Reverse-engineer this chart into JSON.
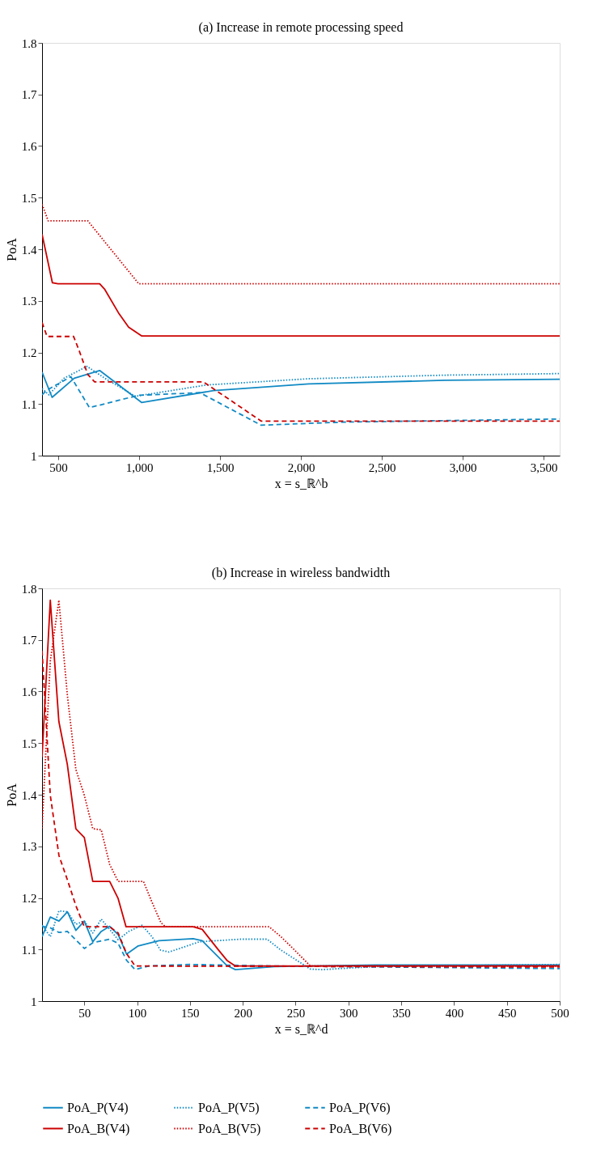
{
  "chart_data": [
    {
      "type": "line",
      "title": "(a) Increase in remote processing speed",
      "xlabel": "x = s_ℝ^b",
      "ylabel": "PoA",
      "xlim": [
        400,
        3600
      ],
      "xticks": [
        500,
        {
          "value": 1000,
          "label": "1,000"
        },
        {
          "value": 1500,
          "label": "1,500"
        },
        {
          "value": 2000,
          "label": "2,000"
        },
        {
          "value": 2500,
          "label": "2,500"
        },
        {
          "value": 3000,
          "label": "3,000"
        },
        {
          "value": 3500,
          "label": "3,500"
        }
      ],
      "ylim": [
        1,
        1.8
      ],
      "yticks": [
        1,
        1.1,
        1.2,
        1.3,
        1.4,
        1.5,
        1.6,
        1.7,
        1.8
      ],
      "grid": false,
      "legend": "bottom",
      "marker": "none",
      "series": [
        {
          "name": "PoA_P(V4)",
          "color": "#118ac4",
          "line_style": "solid",
          "x": [
            400,
            462,
            599,
            756,
            1015,
            1460,
            2048,
            2888,
            3600
          ],
          "values": [
            1.162,
            1.113,
            1.15,
            1.165,
            1.103,
            1.126,
            1.139,
            1.146,
            1.148
          ]
        },
        {
          "name": "PoA_P(V5)",
          "color": "#118ac4",
          "line_style": "dotted",
          "x": [
            400,
            442,
            536,
            678,
            788,
            977,
            1418,
            2048,
            2888,
            3600
          ],
          "values": [
            1.13,
            1.118,
            1.15,
            1.173,
            1.15,
            1.115,
            1.137,
            1.149,
            1.156,
            1.159
          ]
        },
        {
          "name": "PoA_P(V6)",
          "color": "#118ac4",
          "line_style": "dashed",
          "x": [
            400,
            431,
            578,
            693,
            998,
            1376,
            1754,
            2258,
            3600
          ],
          "values": [
            1.118,
            1.127,
            1.153,
            1.093,
            1.117,
            1.122,
            1.059,
            1.065,
            1.071
          ]
        },
        {
          "name": "PoA_B(V4)",
          "color": "#cc0000",
          "line_style": "solid",
          "x": [
            400,
            464,
            498,
            756,
            788,
            872,
            935,
            1015,
            3600
          ],
          "values": [
            1.429,
            1.335,
            1.333,
            1.333,
            1.322,
            1.277,
            1.249,
            1.232,
            1.232
          ]
        },
        {
          "name": "PoA_B(V5)",
          "color": "#cc0000",
          "line_style": "dotted",
          "x": [
            400,
            438,
            683,
            998,
            3600
          ],
          "values": [
            1.487,
            1.455,
            1.455,
            1.333,
            1.333
          ]
        },
        {
          "name": "PoA_B(V6)",
          "color": "#cc0000",
          "line_style": "dashed",
          "x": [
            400,
            431,
            595,
            630,
            683,
            725,
            1397,
            1754,
            3600
          ],
          "values": [
            1.258,
            1.231,
            1.231,
            1.203,
            1.157,
            1.143,
            1.143,
            1.067,
            1.067
          ]
        }
      ]
    },
    {
      "type": "line",
      "title": "(b) Increase in wireless bandwidth",
      "xlabel": "x = s_ℝ^d",
      "ylabel": "PoA",
      "xlim": [
        10,
        500
      ],
      "xticks": [
        50,
        100,
        150,
        200,
        250,
        300,
        350,
        400,
        450,
        500
      ],
      "ylim": [
        1,
        1.8
      ],
      "yticks": [
        1,
        1.1,
        1.2,
        1.3,
        1.4,
        1.5,
        1.6,
        1.7,
        1.8
      ],
      "grid": false,
      "legend": "bottom",
      "marker": "none",
      "series": [
        {
          "name": "PoA_P(V4)",
          "color": "#118ac4",
          "line_style": "solid",
          "x": [
            10,
            17.8,
            26,
            34,
            42,
            50,
            58,
            66,
            74,
            82,
            90,
            101,
            120.7,
            153,
            161.6,
            185,
            193,
            230,
            326,
            500
          ],
          "values": [
            1.125,
            1.163,
            1.155,
            1.173,
            1.137,
            1.155,
            1.115,
            1.135,
            1.145,
            1.129,
            1.091,
            1.107,
            1.117,
            1.121,
            1.117,
            1.069,
            1.061,
            1.067,
            1.07,
            1.07
          ]
        },
        {
          "name": "PoA_P(V5)",
          "color": "#118ac4",
          "line_style": "dotted",
          "x": [
            10,
            17.8,
            26,
            34,
            42,
            50,
            58,
            66,
            74,
            82,
            92,
            104.6,
            114,
            122,
            130,
            159,
            198,
            223,
            236,
            264,
            275,
            326,
            500
          ],
          "values": [
            1.147,
            1.125,
            1.175,
            1.173,
            1.149,
            1.155,
            1.132,
            1.159,
            1.139,
            1.119,
            1.135,
            1.147,
            1.125,
            1.099,
            1.095,
            1.115,
            1.12,
            1.12,
            1.099,
            1.062,
            1.061,
            1.067,
            1.071
          ]
        },
        {
          "name": "PoA_P(V6)",
          "color": "#118ac4",
          "line_style": "dashed",
          "x": [
            10,
            17.8,
            26,
            34,
            50,
            58,
            74,
            82,
            90,
            98,
            111,
            150,
            230,
            500
          ],
          "values": [
            1.145,
            1.142,
            1.133,
            1.135,
            1.102,
            1.113,
            1.12,
            1.112,
            1.079,
            1.061,
            1.068,
            1.071,
            1.068,
            1.063
          ]
        },
        {
          "name": "PoA_B(V4)",
          "color": "#cc0000",
          "line_style": "solid",
          "x": [
            10,
            17.8,
            25.9,
            33.9,
            42,
            50,
            58,
            74,
            82,
            89.5,
            153,
            161.6,
            177,
            185,
            193,
            500
          ],
          "values": [
            1.473,
            1.777,
            1.542,
            1.459,
            1.334,
            1.317,
            1.232,
            1.232,
            1.199,
            1.144,
            1.144,
            1.139,
            1.099,
            1.079,
            1.068,
            1.068
          ]
        },
        {
          "name": "PoA_B(V5)",
          "color": "#cc0000",
          "line_style": "dotted",
          "x": [
            10,
            17.8,
            25.9,
            34,
            42,
            50,
            58,
            66,
            74,
            82,
            106,
            114,
            122.5,
            127,
            225,
            236,
            249,
            264,
            500
          ],
          "values": [
            1.335,
            1.659,
            1.777,
            1.592,
            1.449,
            1.399,
            1.334,
            1.332,
            1.265,
            1.232,
            1.232,
            1.192,
            1.152,
            1.144,
            1.144,
            1.125,
            1.099,
            1.068,
            1.068
          ]
        },
        {
          "name": "PoA_B(V6)",
          "color": "#cc0000",
          "line_style": "dashed",
          "x": [
            10,
            17.8,
            26,
            34,
            42,
            50,
            74,
            82,
            90,
            98,
            500
          ],
          "values": [
            1.679,
            1.399,
            1.282,
            1.235,
            1.185,
            1.144,
            1.144,
            1.132,
            1.092,
            1.068,
            1.066
          ]
        }
      ]
    }
  ]
}
